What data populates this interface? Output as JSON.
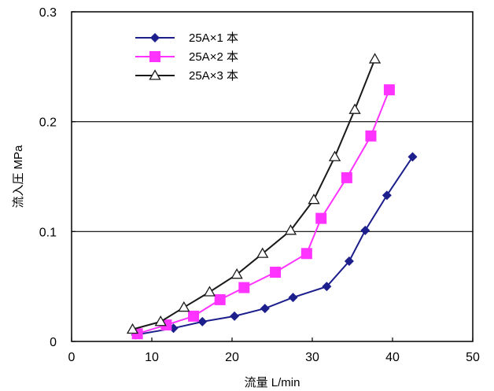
{
  "chart_data": {
    "type": "line",
    "xlabel": "流量 L/min",
    "ylabel": "流入圧 MPa",
    "xlim": [
      0,
      50
    ],
    "ylim": [
      0,
      0.3
    ],
    "xticks": [
      0,
      10,
      20,
      30,
      40,
      50
    ],
    "yticks": [
      0,
      0.1,
      0.2,
      0.3
    ],
    "xtick_labels": [
      "0",
      "10",
      "20",
      "30",
      "40",
      "50"
    ],
    "ytick_labels": [
      "0",
      "0.1",
      "0.2",
      "0.3"
    ],
    "grid": "horizontal lines at 0.1 and 0.2",
    "legend_position": "top-left",
    "series": [
      {
        "name": "25A×1 本",
        "color": "#1c1f8c",
        "marker": "diamond",
        "points": [
          [
            8,
            0.006
          ],
          [
            12.7,
            0.012
          ],
          [
            16.3,
            0.018
          ],
          [
            20.3,
            0.023
          ],
          [
            24.1,
            0.03
          ],
          [
            27.6,
            0.04
          ],
          [
            31.8,
            0.05
          ],
          [
            34.6,
            0.073
          ],
          [
            36.6,
            0.101
          ],
          [
            39.3,
            0.133
          ],
          [
            42.5,
            0.168
          ]
        ]
      },
      {
        "name": "25A×2 本",
        "color": "#ff33ff",
        "marker": "square",
        "points": [
          [
            8.2,
            0.007
          ],
          [
            11.8,
            0.015
          ],
          [
            15.2,
            0.023
          ],
          [
            18.5,
            0.038
          ],
          [
            21.5,
            0.049
          ],
          [
            25.4,
            0.063
          ],
          [
            29.3,
            0.08
          ],
          [
            31.1,
            0.112
          ],
          [
            34.3,
            0.149
          ],
          [
            37.3,
            0.187
          ],
          [
            39.6,
            0.229
          ]
        ]
      },
      {
        "name": "25A×3 本",
        "color": "#1a1a1a",
        "marker": "triangle",
        "points": [
          [
            7.6,
            0.011
          ],
          [
            11.1,
            0.018
          ],
          [
            14,
            0.031
          ],
          [
            17.2,
            0.045
          ],
          [
            20.6,
            0.061
          ],
          [
            23.8,
            0.08
          ],
          [
            27.3,
            0.101
          ],
          [
            30.2,
            0.129
          ],
          [
            32.8,
            0.168
          ],
          [
            35.3,
            0.211
          ],
          [
            37.8,
            0.257
          ]
        ]
      }
    ]
  }
}
